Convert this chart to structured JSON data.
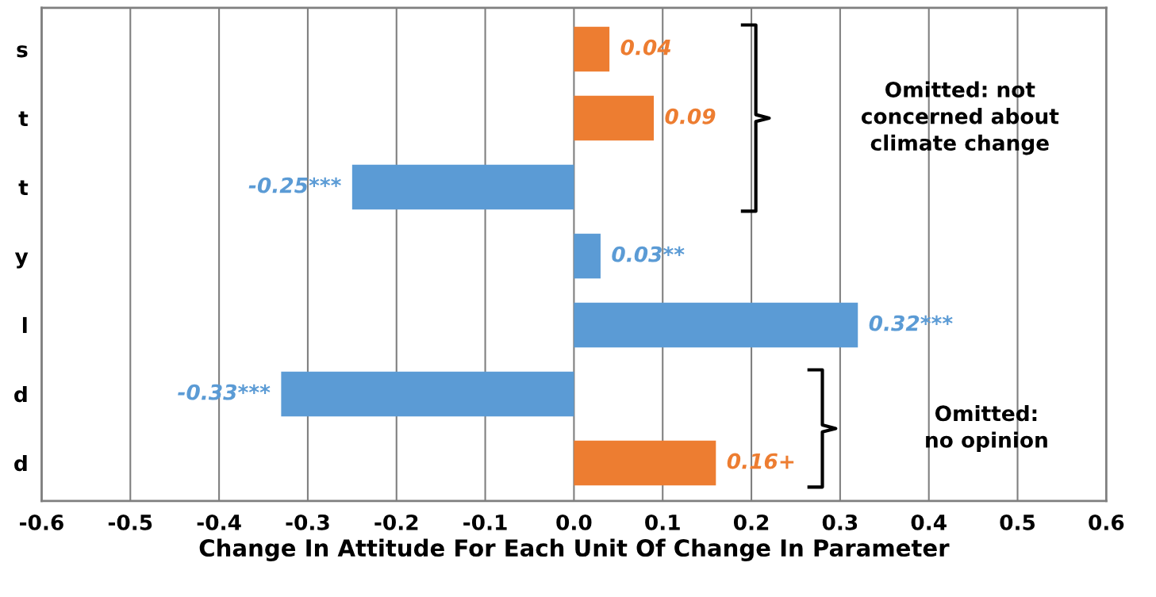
{
  "chart_data": {
    "type": "bar",
    "orientation": "horizontal",
    "xlabel": "Change In Attitude For Each Unit Of Change In Parameter",
    "categories": [
      "s",
      "t",
      "t",
      "y",
      "l",
      "d",
      "d"
    ],
    "values": [
      0.04,
      0.09,
      -0.25,
      0.03,
      0.32,
      -0.33,
      0.16
    ],
    "colors": [
      "#ed7d31",
      "#ed7d31",
      "#5b9bd5",
      "#5b9bd5",
      "#5b9bd5",
      "#5b9bd5",
      "#ed7d31"
    ],
    "value_labels": [
      "0.04",
      "0.09",
      "-0.25***",
      "0.03**",
      "0.32***",
      "-0.33***",
      "0.16+"
    ],
    "xlim": [
      -0.6,
      0.6
    ],
    "xticks": [
      {
        "value": -0.6,
        "label": "-0.6"
      },
      {
        "value": -0.5,
        "label": "-0.5"
      },
      {
        "value": -0.4,
        "label": "-0.4"
      },
      {
        "value": -0.3,
        "label": "-0.3"
      },
      {
        "value": -0.2,
        "label": "-0.2"
      },
      {
        "value": -0.1,
        "label": "-0.1"
      },
      {
        "value": 0.0,
        "label": "0.0"
      },
      {
        "value": 0.1,
        "label": "0.1"
      },
      {
        "value": 0.2,
        "label": "0.2"
      },
      {
        "value": 0.3,
        "label": "0.3"
      },
      {
        "value": 0.4,
        "label": "0.4"
      },
      {
        "value": 0.5,
        "label": "0.5"
      },
      {
        "value": 0.6,
        "label": "0.6"
      }
    ],
    "grid": "x",
    "annotations": [
      "Omitted: not\nconcerned about\nclimate change",
      "Omitted:\nno opinion"
    ]
  }
}
